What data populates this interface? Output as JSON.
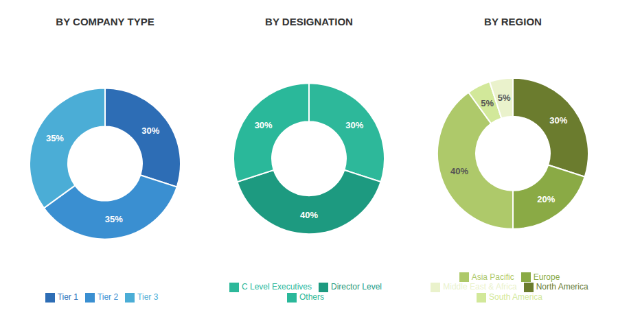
{
  "chart_data": [
    {
      "type": "pie",
      "title": "BY COMPANY TYPE",
      "categories": [
        "Tier 1",
        "Tier 2",
        "Tier 3"
      ],
      "values": [
        30,
        35,
        35
      ],
      "value_labels": [
        "30%",
        "35%",
        "35%"
      ],
      "colors": [
        "#2d6db5",
        "#3a8fd1",
        "#4badd6"
      ],
      "data_labels": true,
      "legend": "bottom"
    },
    {
      "type": "pie",
      "title": "BY DESIGNATION",
      "categories": [
        "C Level Executives",
        "Director Level",
        "Others"
      ],
      "values": [
        30,
        40,
        30
      ],
      "value_labels": [
        "30%",
        "40%",
        "30%"
      ],
      "colors": [
        "#2db89a",
        "#1d9a80",
        "#2ab89a"
      ],
      "data_labels": true,
      "legend": "bottom"
    },
    {
      "type": "pie",
      "title": "BY REGION",
      "categories": [
        "North America",
        "Europe",
        "Asia Pacific",
        "South America",
        "Middle East & Africa"
      ],
      "values": [
        30,
        20,
        40,
        5,
        5
      ],
      "value_labels": [
        "30%",
        "20%",
        "40%",
        "5%",
        "5%"
      ],
      "colors": [
        "#6b7c2e",
        "#8aaa45",
        "#aec96a",
        "#d2e89a",
        "#eaf2cc"
      ],
      "data_labels": true,
      "legend": "bottom"
    }
  ]
}
